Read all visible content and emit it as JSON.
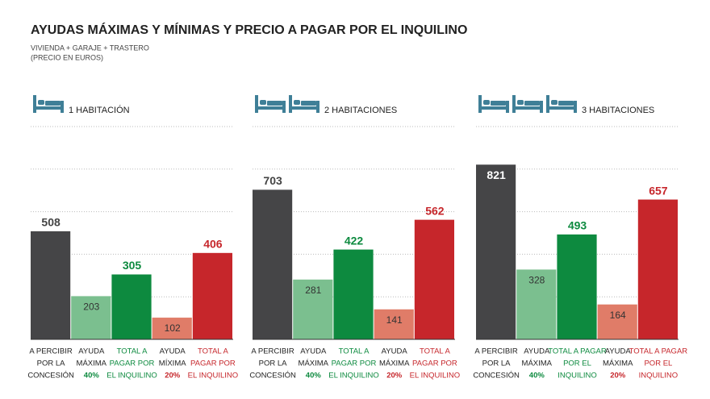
{
  "title": "AYUDAS MÁXIMAS Y MÍNIMAS Y PRECIO A PAGAR POR EL INQUILINO",
  "subtitle": [
    "VIVIENDA + GARAJE + TRASTERO",
    "(PRECIO EN EUROS)"
  ],
  "chart_data": [
    {
      "type": "bar",
      "title": "1 HABITACIÓN",
      "categories": [
        [
          "A PERCIBIR",
          "POR LA",
          "CONCESIÓN"
        ],
        [
          "AYUDA",
          "MÁXIMA",
          "40%"
        ],
        [
          "TOTAL A",
          "PAGAR POR",
          "EL INQUILINO"
        ],
        [
          "AYUDA",
          "MÍXIMA",
          "20%"
        ],
        [
          "TOTAL A",
          "PAGAR POR",
          "EL INQUILINO"
        ]
      ],
      "label_colors": [
        [
          "#222",
          "#222",
          "#222"
        ],
        [
          "#222",
          "#222",
          "#0d8a3f"
        ],
        [
          "#0d8a3f",
          "#0d8a3f",
          "#0d8a3f"
        ],
        [
          "#222",
          "#222",
          "#c6262b"
        ],
        [
          "#c6262b",
          "#c6262b",
          "#c6262b"
        ]
      ],
      "values": [
        508,
        203,
        305,
        102,
        406
      ],
      "colors": [
        "#454547",
        "#7bbf8f",
        "#0d8a3f",
        "#e07c68",
        "#c6262b"
      ],
      "value_label_colors": [
        "#444",
        "#333",
        "#0d8a3f",
        "#333",
        "#c6262b"
      ],
      "value_label_positions": [
        "above",
        "inside",
        "above",
        "inside",
        "above"
      ],
      "ylim": [
        0,
        1000
      ],
      "yticks": [
        0,
        200,
        400,
        600,
        800,
        1000
      ],
      "grid": true
    },
    {
      "type": "bar",
      "title": "2 HABITACIONES",
      "categories": [
        [
          "A PERCIBIR",
          "POR LA",
          "CONCESIÓN"
        ],
        [
          "AYUDA",
          "MÁXIMA",
          "40%"
        ],
        [
          "TOTAL A",
          "PAGAR POR",
          "EL INQUILINO"
        ],
        [
          "AYUDA",
          "MÁXIMA",
          "20%"
        ],
        [
          "TOTAL A",
          "PAGAR POR",
          "EL INQUILINO"
        ]
      ],
      "label_colors": [
        [
          "#222",
          "#222",
          "#222"
        ],
        [
          "#222",
          "#222",
          "#0d8a3f"
        ],
        [
          "#0d8a3f",
          "#0d8a3f",
          "#0d8a3f"
        ],
        [
          "#222",
          "#222",
          "#c6262b"
        ],
        [
          "#c6262b",
          "#c6262b",
          "#c6262b"
        ]
      ],
      "values": [
        703,
        281,
        422,
        141,
        562
      ],
      "colors": [
        "#454547",
        "#7bbf8f",
        "#0d8a3f",
        "#e07c68",
        "#c6262b"
      ],
      "value_label_colors": [
        "#444",
        "#333",
        "#0d8a3f",
        "#333",
        "#c6262b"
      ],
      "value_label_positions": [
        "above",
        "inside",
        "above",
        "inside",
        "above"
      ],
      "ylim": [
        0,
        1000
      ],
      "yticks": [
        0,
        200,
        400,
        600,
        800,
        1000
      ],
      "grid": true
    },
    {
      "type": "bar",
      "title": "3 HABITACIONES",
      "categories": [
        [
          "A PERCIBIR",
          "POR LA",
          "CONCESIÓN"
        ],
        [
          "AYUDA",
          "MÁXIMA",
          "40%"
        ],
        [
          "TOTAL A PAGAR",
          "POR EL",
          "INQUILINO"
        ],
        [
          "AYUDA",
          "MÁXIMA",
          "20%"
        ],
        [
          "TOTAL A PAGAR",
          "POR EL",
          "INQUILINO"
        ]
      ],
      "label_colors": [
        [
          "#222",
          "#222",
          "#222"
        ],
        [
          "#222",
          "#222",
          "#0d8a3f"
        ],
        [
          "#0d8a3f",
          "#0d8a3f",
          "#0d8a3f"
        ],
        [
          "#222",
          "#222",
          "#c6262b"
        ],
        [
          "#c6262b",
          "#c6262b",
          "#c6262b"
        ]
      ],
      "values": [
        821,
        328,
        493,
        164,
        657
      ],
      "colors": [
        "#454547",
        "#7bbf8f",
        "#0d8a3f",
        "#e07c68",
        "#c6262b"
      ],
      "value_label_colors": [
        "#ffffff",
        "#333",
        "#0d8a3f",
        "#333",
        "#c6262b"
      ],
      "value_label_positions": [
        "inside",
        "inside",
        "above",
        "inside",
        "above"
      ],
      "ylim": [
        0,
        1000
      ],
      "yticks": [
        0,
        200,
        400,
        600,
        800,
        1000
      ],
      "grid": true
    }
  ]
}
